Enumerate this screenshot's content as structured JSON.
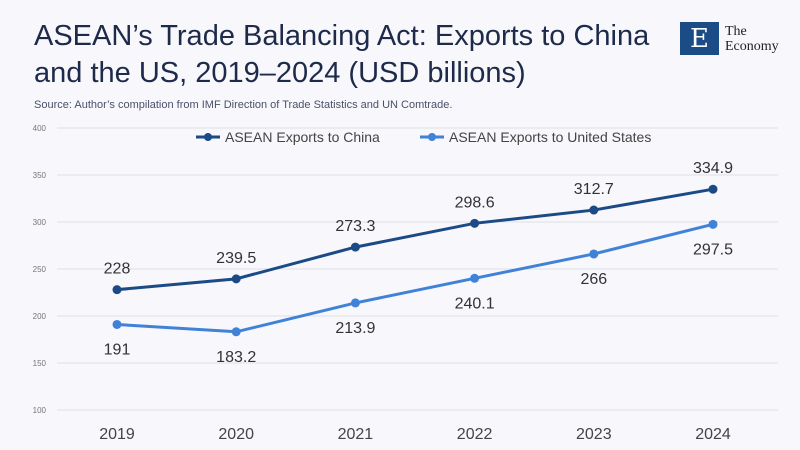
{
  "header": {
    "title": "ASEAN’s Trade Balancing Act: Exports to China and the US, 2019–2024 (USD billions)",
    "source": "Source:  Author’s compilation from IMF Direction of Trade Statistics and UN Comtrade.",
    "logo_letter": "E",
    "logo_text": "The Economy"
  },
  "chart_data": {
    "type": "line",
    "title": "ASEAN’s Trade Balancing Act: Exports to China and the US, 2019–2024 (USD billions)",
    "x": [
      "2019",
      "2020",
      "2021",
      "2022",
      "2023",
      "2024"
    ],
    "ylim": [
      100,
      400
    ],
    "yticks": [
      "100",
      "150",
      "200",
      "250",
      "300",
      "350",
      "400"
    ],
    "grid": true,
    "legend": "top-center",
    "series": [
      {
        "name": "ASEAN Exports to China",
        "values": [
          228,
          239.5,
          273.3,
          298.6,
          312.7,
          334.9
        ],
        "labels": [
          "228",
          "239.5",
          "273.3",
          "298.6",
          "312.7",
          "334.9"
        ],
        "color": "#1b4a86"
      },
      {
        "name": "ASEAN Exports to United States",
        "values": [
          191,
          183.2,
          213.9,
          240.1,
          266,
          297.5
        ],
        "labels": [
          "191",
          "183.2",
          "213.9",
          "240.1",
          "266",
          "297.5"
        ],
        "color": "#3f82d8"
      }
    ]
  }
}
